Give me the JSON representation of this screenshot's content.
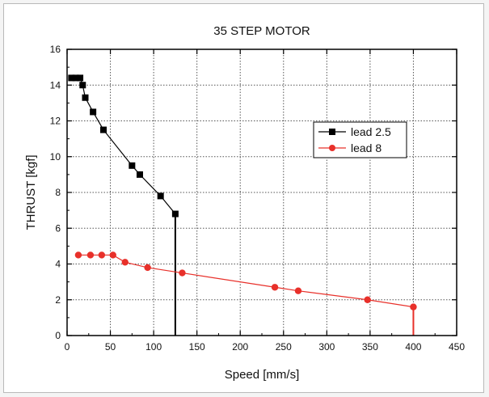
{
  "chart_data": {
    "type": "line",
    "title": "35 STEP MOTOR",
    "xlabel": "Speed [mm/s]",
    "ylabel": "THRUST [kgf]",
    "xlim": [
      0,
      450
    ],
    "ylim": [
      0,
      16
    ],
    "xticks": [
      0,
      50,
      100,
      150,
      200,
      250,
      300,
      350,
      400,
      450
    ],
    "yticks": [
      0,
      2,
      4,
      6,
      8,
      10,
      12,
      14,
      16
    ],
    "grid": true,
    "legend_position": "right",
    "series": [
      {
        "name": "lead 2.5",
        "color": "#000000",
        "marker": "square",
        "points": [
          [
            5,
            14.4
          ],
          [
            10,
            14.4
          ],
          [
            15,
            14.4
          ],
          [
            18,
            14.0
          ],
          [
            21,
            13.3
          ],
          [
            30,
            12.5
          ],
          [
            42,
            11.5
          ],
          [
            75,
            9.5
          ],
          [
            84,
            9.0
          ],
          [
            108,
            7.8
          ],
          [
            125,
            6.8
          ]
        ],
        "drop_to_axis": true
      },
      {
        "name": "lead 8",
        "color": "#e8302a",
        "marker": "circle",
        "points": [
          [
            13,
            4.5
          ],
          [
            27,
            4.5
          ],
          [
            40,
            4.5
          ],
          [
            53,
            4.5
          ],
          [
            67,
            4.1
          ],
          [
            93,
            3.8
          ],
          [
            133,
            3.5
          ],
          [
            240,
            2.7
          ],
          [
            267,
            2.5
          ],
          [
            347,
            2.0
          ],
          [
            400,
            1.6
          ]
        ],
        "drop_to_axis": true
      }
    ]
  }
}
